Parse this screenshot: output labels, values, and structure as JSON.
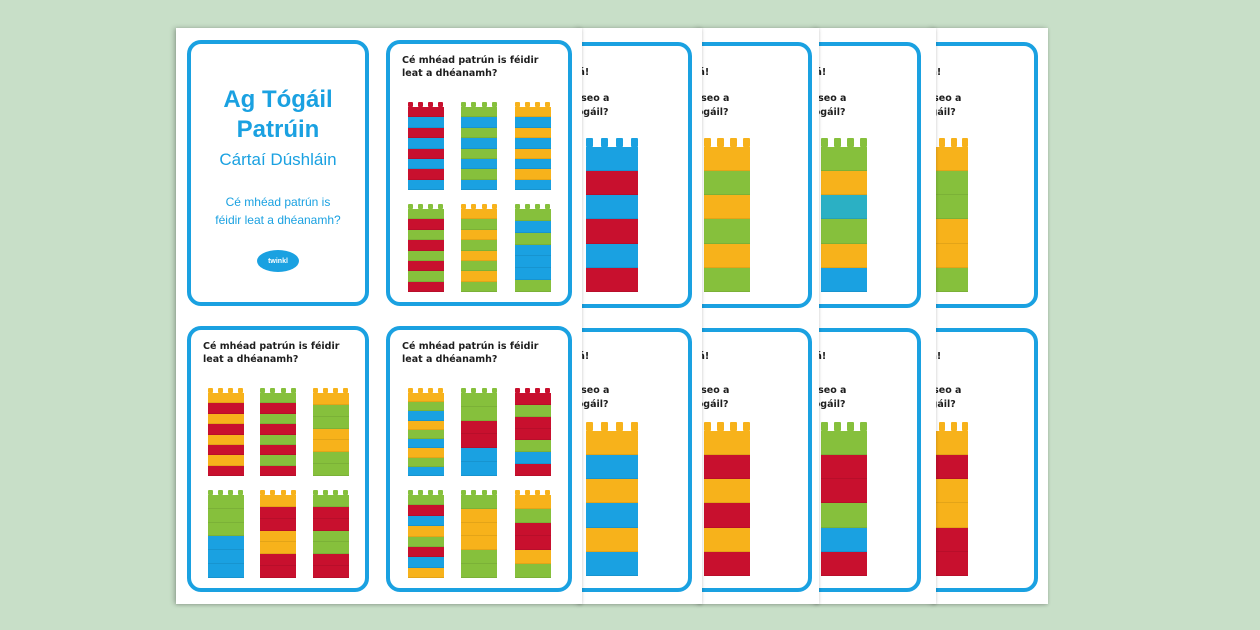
{
  "colors": {
    "background": "#c8dfc8",
    "card_border": "#1aa1e1",
    "red": "#c8102e",
    "blue": "#1aa1e1",
    "green": "#86c03c",
    "orange": "#f7b21b",
    "teal": "#2bb0c4"
  },
  "title_card": {
    "title_line1": "Ag Tógáil",
    "title_line2": "Patrúin",
    "subtitle": "Cártaí Dúshláin",
    "question_line1": "Cé mhéad patrún is",
    "question_line2": "féidir leat a dhéanamh?",
    "logo_text": "twinkl",
    "logo_icon": "twinkl-logo-icon"
  },
  "grid_cards": [
    {
      "question_line1": "Cé mhéad patrún is féidir",
      "question_line2": "leat a dhéanamh?",
      "towers": [
        [
          "red",
          "blue",
          "red",
          "blue",
          "red",
          "blue",
          "red",
          "blue"
        ],
        [
          "green",
          "blue",
          "green",
          "blue",
          "green",
          "blue",
          "green",
          "blue"
        ],
        [
          "orange",
          "blue",
          "orange",
          "blue",
          "orange",
          "blue",
          "orange",
          "blue"
        ],
        [
          "green",
          "red",
          "green",
          "red",
          "green",
          "red",
          "green",
          "red"
        ],
        [
          "orange",
          "green",
          "orange",
          "green",
          "orange",
          "green",
          "orange",
          "green"
        ],
        [
          "green",
          "blue",
          "green",
          "blue",
          "blue",
          "blue",
          "green"
        ]
      ]
    },
    {
      "question_line1": "Cé mhéad patrún is féidir",
      "question_line2": "leat a dhéanamh?",
      "towers": [
        [
          "orange",
          "red",
          "orange",
          "red",
          "orange",
          "red",
          "orange",
          "red"
        ],
        [
          "green",
          "red",
          "green",
          "red",
          "green",
          "red",
          "green",
          "red"
        ],
        [
          "orange",
          "green",
          "green",
          "orange",
          "orange",
          "green",
          "green"
        ],
        [
          "green",
          "green",
          "green",
          "blue",
          "blue",
          "blue"
        ],
        [
          "orange",
          "red",
          "red",
          "orange",
          "orange",
          "red",
          "red"
        ],
        [
          "green",
          "red",
          "red",
          "green",
          "green",
          "red",
          "red"
        ]
      ]
    },
    {
      "question_line1": "Cé mhéad patrún is féidir",
      "question_line2": "leat a dhéanamh?",
      "towers": [
        [
          "orange",
          "green",
          "blue",
          "orange",
          "green",
          "blue",
          "orange",
          "green",
          "blue"
        ],
        [
          "green",
          "green",
          "red",
          "red",
          "blue",
          "blue"
        ],
        [
          "red",
          "green",
          "red",
          "red",
          "green",
          "blue",
          "red"
        ],
        [
          "green",
          "red",
          "blue",
          "orange",
          "green",
          "red",
          "blue",
          "orange"
        ],
        [
          "green",
          "orange",
          "orange",
          "orange",
          "green",
          "green"
        ],
        [
          "orange",
          "green",
          "red",
          "red",
          "orange",
          "green"
        ]
      ]
    }
  ],
  "tower_cards": [
    {
      "row": "top",
      "fragment_line1": "ilá!",
      "fragment_line2": "lat túr mar seo a",
      "fragment_line3": "hógáil?",
      "bricks": [
        "blue",
        "red",
        "blue",
        "red",
        "blue",
        "red"
      ]
    },
    {
      "row": "top",
      "fragment_line1": "ilá!",
      "fragment_line2": "lat túr mar seo a",
      "fragment_line3": "hógáil?",
      "bricks": [
        "orange",
        "green",
        "orange",
        "green",
        "orange",
        "green"
      ]
    },
    {
      "row": "top",
      "fragment_line1": "ilá!",
      "fragment_line2": "lat túr mar seo a",
      "fragment_line3": "hógáil?",
      "bricks": [
        "green",
        "orange",
        "teal",
        "green",
        "orange",
        "blue"
      ]
    },
    {
      "row": "top",
      "fragment_line1": "ilá!",
      "fragment_line2": "lat túr mar seo a",
      "fragment_line3": "ógáil?",
      "bricks": [
        "orange",
        "green",
        "green",
        "orange",
        "orange",
        "green"
      ]
    },
    {
      "row": "bottom",
      "fragment_line1": "ilá!",
      "fragment_line2": "lat túr mar seo a",
      "fragment_line3": "hógáil?",
      "bricks": [
        "orange",
        "blue",
        "orange",
        "blue",
        "orange",
        "blue"
      ]
    },
    {
      "row": "bottom",
      "fragment_line1": "ilá!",
      "fragment_line2": "lat túr mar seo a",
      "fragment_line3": "hógáil?",
      "bricks": [
        "orange",
        "red",
        "orange",
        "red",
        "orange",
        "red"
      ]
    },
    {
      "row": "bottom",
      "fragment_line1": "ilá!",
      "fragment_line2": "lat túr mar seo a",
      "fragment_line3": "hógáil?",
      "bricks": [
        "green",
        "red",
        "red",
        "green",
        "blue",
        "red"
      ]
    },
    {
      "row": "bottom",
      "fragment_line1": "ilá!",
      "fragment_line2": "lat túr mar seo a",
      "fragment_line3": "ógáil?",
      "bricks": [
        "orange",
        "red",
        "orange",
        "orange",
        "red",
        "red"
      ]
    }
  ]
}
